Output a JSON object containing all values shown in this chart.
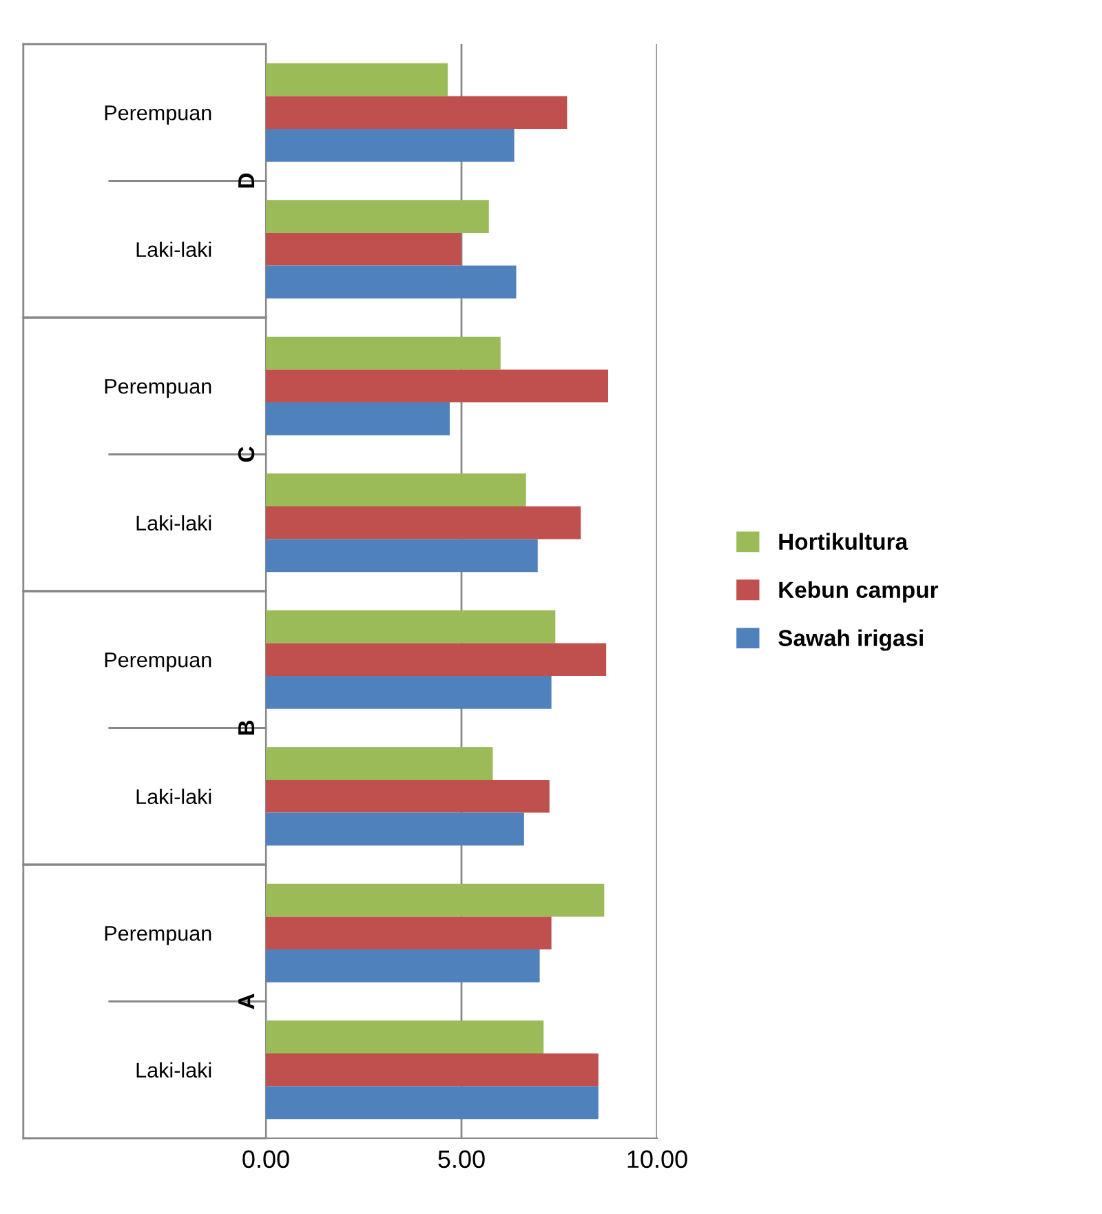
{
  "chart_data": {
    "type": "bar",
    "orientation": "horizontal",
    "categories": [
      "Perempuan",
      "Laki-laki",
      "Perempuan",
      "Laki-laki",
      "Perempuan",
      "Laki-laki",
      "Perempuan",
      "Laki-laki"
    ],
    "series": [
      {
        "name": "Hortikultura",
        "color": "#9bbb59",
        "values": [
          4.65,
          5.7,
          6.0,
          6.65,
          7.4,
          5.8,
          8.65,
          7.1
        ]
      },
      {
        "name": "Kebun campur",
        "color": "#c0504d",
        "values": [
          7.7,
          5.0,
          8.75,
          8.05,
          8.7,
          7.25,
          7.3,
          8.5
        ]
      },
      {
        "name": "Sawah irigasi",
        "color": "#4f81bd",
        "values": [
          6.35,
          6.4,
          4.7,
          6.95,
          7.3,
          6.6,
          7.0,
          8.5
        ]
      }
    ],
    "annotations": [
      "D",
      "C",
      "B",
      "A"
    ],
    "xlim": [
      0,
      10
    ],
    "xticks": [
      {
        "value": 0,
        "label": "0.00"
      },
      {
        "value": 5,
        "label": "5.00"
      },
      {
        "value": 10,
        "label": "10.00"
      }
    ],
    "grid": "x",
    "legend": "right"
  }
}
